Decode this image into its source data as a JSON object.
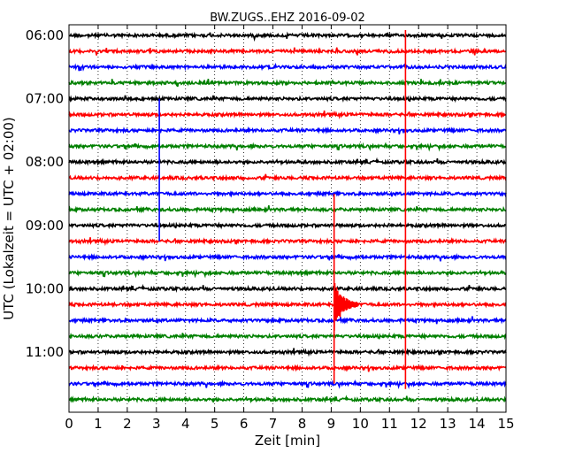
{
  "chart_data": {
    "type": "line",
    "title": "BW.ZUGS..EHZ 2016-09-02",
    "xlabel": "Zeit  [min]",
    "ylabel": "UTC (Lokalzeit = UTC + 02:00)",
    "xlim": [
      0,
      15
    ],
    "x_ticks": [
      0,
      1,
      2,
      3,
      4,
      5,
      6,
      7,
      8,
      9,
      10,
      11,
      12,
      13,
      14,
      15
    ],
    "grid": "vertical dotted",
    "y_ticks": [
      "06:00",
      "07:00",
      "08:00",
      "09:00",
      "10:00",
      "11:00"
    ],
    "trace_interval_min": 15,
    "trace_colors": [
      "#000000",
      "#ff0000",
      "#0000ff",
      "#008000"
    ],
    "traces": [
      {
        "start": "06:00",
        "color": "#000000"
      },
      {
        "start": "06:15",
        "color": "#ff0000"
      },
      {
        "start": "06:30",
        "color": "#0000ff"
      },
      {
        "start": "06:45",
        "color": "#008000"
      },
      {
        "start": "07:00",
        "color": "#000000"
      },
      {
        "start": "07:15",
        "color": "#ff0000"
      },
      {
        "start": "07:30",
        "color": "#0000ff"
      },
      {
        "start": "07:45",
        "color": "#008000"
      },
      {
        "start": "08:00",
        "color": "#000000"
      },
      {
        "start": "08:15",
        "color": "#ff0000"
      },
      {
        "start": "08:30",
        "color": "#0000ff"
      },
      {
        "start": "08:45",
        "color": "#008000"
      },
      {
        "start": "09:00",
        "color": "#000000"
      },
      {
        "start": "09:15",
        "color": "#ff0000"
      },
      {
        "start": "09:30",
        "color": "#0000ff"
      },
      {
        "start": "09:45",
        "color": "#008000"
      },
      {
        "start": "10:00",
        "color": "#000000"
      },
      {
        "start": "10:15",
        "color": "#ff0000"
      },
      {
        "start": "10:30",
        "color": "#0000ff"
      },
      {
        "start": "10:45",
        "color": "#008000"
      },
      {
        "start": "11:00",
        "color": "#000000"
      },
      {
        "start": "11:15",
        "color": "#ff0000"
      },
      {
        "start": "11:30",
        "color": "#0000ff"
      },
      {
        "start": "11:45",
        "color": "#008000"
      }
    ],
    "events": [
      {
        "name": "spike",
        "color": "#0000ff",
        "x_min": 3.1,
        "from": "07:00",
        "to": "09:15"
      },
      {
        "name": "quake",
        "color": "#ff0000",
        "x_min": 9.1,
        "from": "08:30",
        "to": "11:30"
      },
      {
        "name": "spike",
        "color": "#ff0000",
        "x_min": 11.55,
        "from": "05:55",
        "to": "11:35"
      }
    ]
  }
}
